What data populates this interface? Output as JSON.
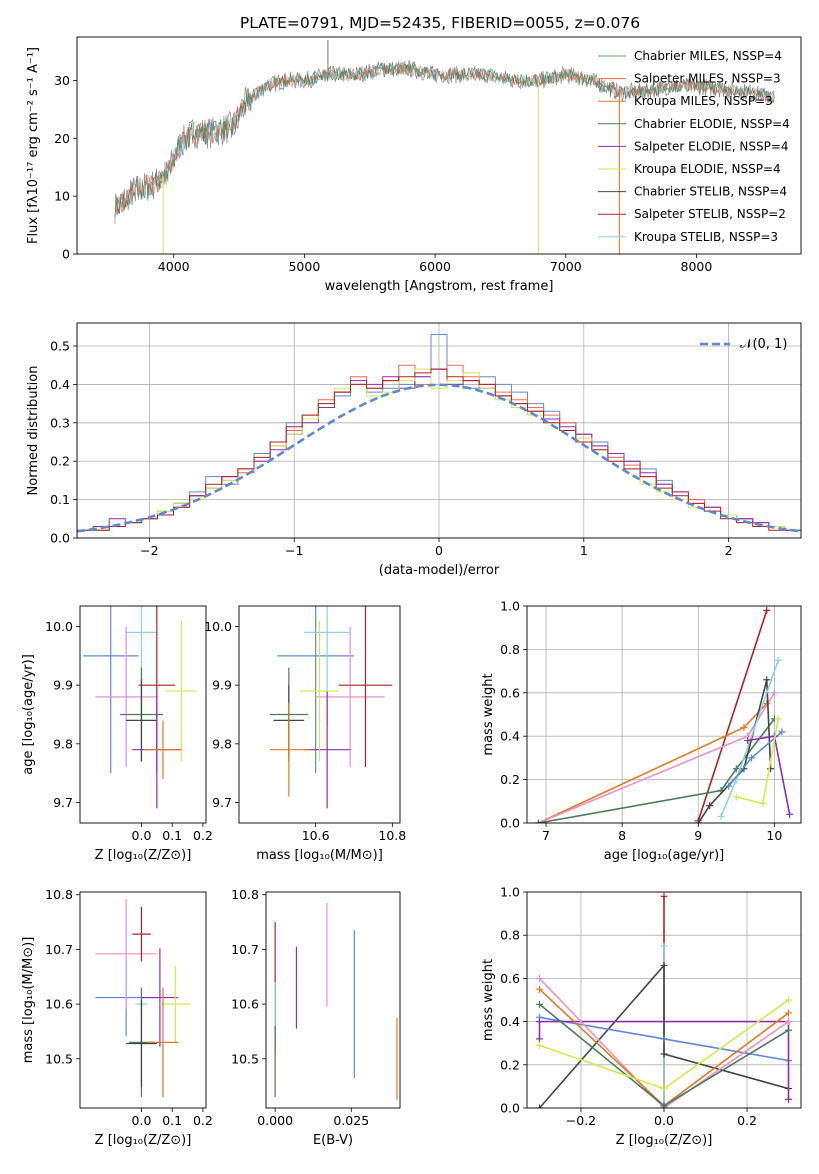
{
  "figure": {
    "title": "PLATE=0791, MJD=52435, FIBERID=0055, z=0.076"
  },
  "chart_data": [
    {
      "type": "line",
      "title": "PLATE=0791, MJD=52435, FIBERID=0055, z=0.076",
      "xlabel": "wavelength [Angstrom, rest frame]",
      "ylabel": "Flux [fλ10⁻¹⁷ erg cm⁻² s⁻¹ A⁻¹]",
      "xlim": [
        3260,
        8800
      ],
      "ylim": [
        0,
        37.5
      ],
      "xticks": [
        "4000",
        "5000",
        "6000",
        "7000",
        "8000"
      ],
      "yticks": [
        "0",
        "10",
        "20",
        "30"
      ],
      "legend_position": "top-right",
      "series": [
        {
          "name": "Chabrier MILES, N_SSP=4",
          "color": "#5f9e6e"
        },
        {
          "name": "Salpeter MILES, N_SSP=3",
          "color": "#ee6a50"
        },
        {
          "name": "Kroupa MILES, N_SSP=3",
          "color": "#e07a1f"
        },
        {
          "name": "Chabrier ELODIE, N_SSP=4",
          "color": "#4a7c59"
        },
        {
          "name": "Salpeter ELODIE, N_SSP=4",
          "color": "#8e2fb0"
        },
        {
          "name": "Kroupa ELODIE, N_SSP=4",
          "color": "#d4e84a"
        },
        {
          "name": "Chabrier STELIB, N_SSP=4",
          "color": "#444444"
        },
        {
          "name": "Salpeter STELIB, N_SSP=2",
          "color": "#b22222"
        },
        {
          "name": "Kroupa STELIB, N_SSP=3",
          "color": "#87d4e0"
        }
      ],
      "continuum": [
        [
          3550,
          8
        ],
        [
          3700,
          11
        ],
        [
          3850,
          12
        ],
        [
          3950,
          14
        ],
        [
          4050,
          19
        ],
        [
          4150,
          21
        ],
        [
          4300,
          21
        ],
        [
          4450,
          22
        ],
        [
          4550,
          26
        ],
        [
          4700,
          29
        ],
        [
          4850,
          30
        ],
        [
          5000,
          30
        ],
        [
          5200,
          31
        ],
        [
          5400,
          31
        ],
        [
          5600,
          32
        ],
        [
          5800,
          32
        ],
        [
          6000,
          31
        ],
        [
          6200,
          31
        ],
        [
          6400,
          31
        ],
        [
          6600,
          30
        ],
        [
          6800,
          30
        ],
        [
          7000,
          31
        ],
        [
          7200,
          30
        ],
        [
          7400,
          28
        ],
        [
          7600,
          28
        ],
        [
          7800,
          29
        ],
        [
          8000,
          29
        ],
        [
          8200,
          28.5
        ],
        [
          8400,
          28
        ],
        [
          8600,
          27
        ]
      ],
      "spikes": [
        {
          "x": 5180,
          "y": 37
        },
        {
          "x": 6790,
          "y": 0
        },
        {
          "x": 7410,
          "y": 0
        },
        {
          "x": 3920,
          "y": 0
        }
      ]
    },
    {
      "type": "line",
      "xlabel": "(data-model)/error",
      "ylabel": "Normed distribution",
      "xlim": [
        -2.5,
        2.5
      ],
      "ylim": [
        0,
        0.56
      ],
      "xticks": [
        "−2",
        "−1",
        "0",
        "1",
        "2"
      ],
      "yticks": [
        "0.0",
        "0.1",
        "0.2",
        "0.3",
        "0.4",
        "0.5"
      ],
      "grid": true,
      "legend_position": "top-right",
      "reference_curve": {
        "name": "𝒩(0, 1)",
        "color": "#5b8bd6"
      },
      "histograms": [
        {
          "color": "#5b8bd6",
          "values": [
            0.02,
            0.02,
            0.03,
            0.04,
            0.05,
            0.07,
            0.09,
            0.12,
            0.16,
            0.14,
            0.18,
            0.22,
            0.25,
            0.3,
            0.31,
            0.34,
            0.37,
            0.4,
            0.38,
            0.39,
            0.4,
            0.42,
            0.53,
            0.4,
            0.39,
            0.42,
            0.4,
            0.38,
            0.35,
            0.33,
            0.3,
            0.27,
            0.25,
            0.22,
            0.2,
            0.18,
            0.15,
            0.12,
            0.1,
            0.08,
            0.06,
            0.05,
            0.04,
            0.03,
            0.02
          ]
        },
        {
          "color": "#ee6a50",
          "values": [
            0.02,
            0.02,
            0.03,
            0.04,
            0.05,
            0.06,
            0.08,
            0.11,
            0.13,
            0.15,
            0.17,
            0.2,
            0.24,
            0.28,
            0.32,
            0.36,
            0.38,
            0.42,
            0.39,
            0.41,
            0.45,
            0.4,
            0.44,
            0.45,
            0.42,
            0.4,
            0.38,
            0.36,
            0.34,
            0.32,
            0.3,
            0.27,
            0.24,
            0.21,
            0.19,
            0.16,
            0.14,
            0.12,
            0.1,
            0.08,
            0.06,
            0.05,
            0.04,
            0.03,
            0.02
          ]
        },
        {
          "color": "#8e2fb0",
          "values": [
            0.02,
            0.03,
            0.05,
            0.04,
            0.05,
            0.06,
            0.09,
            0.11,
            0.13,
            0.16,
            0.18,
            0.2,
            0.23,
            0.27,
            0.3,
            0.34,
            0.38,
            0.41,
            0.4,
            0.42,
            0.39,
            0.42,
            0.44,
            0.4,
            0.41,
            0.39,
            0.37,
            0.35,
            0.33,
            0.31,
            0.29,
            0.27,
            0.24,
            0.22,
            0.2,
            0.17,
            0.14,
            0.12,
            0.09,
            0.08,
            0.06,
            0.05,
            0.04,
            0.03,
            0.02
          ]
        },
        {
          "color": "#d4e84a",
          "values": [
            0.02,
            0.02,
            0.03,
            0.04,
            0.05,
            0.07,
            0.09,
            0.1,
            0.13,
            0.15,
            0.18,
            0.21,
            0.24,
            0.27,
            0.31,
            0.35,
            0.39,
            0.4,
            0.37,
            0.38,
            0.41,
            0.44,
            0.39,
            0.41,
            0.43,
            0.39,
            0.36,
            0.34,
            0.32,
            0.3,
            0.28,
            0.26,
            0.23,
            0.2,
            0.18,
            0.14,
            0.12,
            0.1,
            0.08,
            0.07,
            0.06,
            0.04,
            0.03,
            0.03,
            0.02
          ]
        },
        {
          "color": "#b22222",
          "values": [
            0.02,
            0.02,
            0.03,
            0.04,
            0.05,
            0.06,
            0.08,
            0.11,
            0.14,
            0.16,
            0.18,
            0.21,
            0.25,
            0.29,
            0.32,
            0.35,
            0.38,
            0.4,
            0.39,
            0.41,
            0.42,
            0.43,
            0.44,
            0.42,
            0.41,
            0.4,
            0.37,
            0.35,
            0.33,
            0.3,
            0.28,
            0.25,
            0.23,
            0.2,
            0.18,
            0.16,
            0.13,
            0.11,
            0.09,
            0.07,
            0.05,
            0.04,
            0.03,
            0.02,
            0.02
          ]
        }
      ]
    },
    {
      "type": "scatter",
      "xlabel": "Z [log₁₀(Z/Z⊙)]",
      "ylabel": "age  [log₁₀(age/yr)]",
      "xlim": [
        -0.2,
        0.21
      ],
      "ylim": [
        9.665,
        10.035
      ],
      "xticks": [
        "0.0",
        "0.1",
        "0.2"
      ],
      "yticks": [
        "9.7",
        "9.8",
        "9.9",
        "10.0"
      ],
      "points": [
        {
          "x": -0.1,
          "y": 9.95,
          "xerr": 0.09,
          "yerr": 0.2,
          "color": "#5b8bd6"
        },
        {
          "x": 0.0,
          "y": 9.99,
          "xerr": 0.05,
          "yerr": 0.16,
          "color": "#87d4e0"
        },
        {
          "x": -0.05,
          "y": 9.88,
          "xerr": 0.1,
          "yerr": 0.12,
          "color": "#ee8fc9"
        },
        {
          "x": 0.05,
          "y": 9.9,
          "xerr": 0.06,
          "yerr": 0.15,
          "color": "#b22222"
        },
        {
          "x": 0.0,
          "y": 9.85,
          "xerr": 0.07,
          "yerr": 0.08,
          "color": "#4a7c59"
        },
        {
          "x": 0.0,
          "y": 9.84,
          "xerr": 0.05,
          "yerr": 0.07,
          "color": "#444444"
        },
        {
          "x": 0.05,
          "y": 9.79,
          "xerr": 0.08,
          "yerr": 0.1,
          "color": "#8e2fb0"
        },
        {
          "x": 0.13,
          "y": 9.89,
          "xerr": 0.05,
          "yerr": 0.12,
          "color": "#d4e84a"
        },
        {
          "x": 0.07,
          "y": 9.79,
          "xerr": 0.06,
          "yerr": 0.05,
          "color": "#e07a1f"
        }
      ]
    },
    {
      "type": "scatter",
      "xlabel": "mass [log₁₀(M/M⊙)]",
      "xlim": [
        10.4,
        10.82
      ],
      "ylim": [
        9.665,
        10.035
      ],
      "xticks": [
        "10.6",
        "10.8"
      ],
      "yticks": [
        "9.7",
        "9.8",
        "9.9",
        "10.0"
      ],
      "points": [
        {
          "x": 10.6,
          "y": 9.95,
          "xerr": 0.1,
          "yerr": 0.2,
          "color": "#5b8bd6"
        },
        {
          "x": 10.63,
          "y": 9.99,
          "xerr": 0.06,
          "yerr": 0.16,
          "color": "#87d4e0"
        },
        {
          "x": 10.69,
          "y": 9.88,
          "xerr": 0.09,
          "yerr": 0.12,
          "color": "#ee8fc9"
        },
        {
          "x": 10.73,
          "y": 9.9,
          "xerr": 0.07,
          "yerr": 0.14,
          "color": "#b22222"
        },
        {
          "x": 10.53,
          "y": 9.85,
          "xerr": 0.05,
          "yerr": 0.08,
          "color": "#4a7c59"
        },
        {
          "x": 10.53,
          "y": 9.84,
          "xerr": 0.04,
          "yerr": 0.06,
          "color": "#444444"
        },
        {
          "x": 10.63,
          "y": 9.79,
          "xerr": 0.06,
          "yerr": 0.1,
          "color": "#8e2fb0"
        },
        {
          "x": 10.61,
          "y": 9.89,
          "xerr": 0.05,
          "yerr": 0.12,
          "color": "#d4e84a"
        },
        {
          "x": 10.53,
          "y": 9.79,
          "xerr": 0.05,
          "yerr": 0.08,
          "color": "#e07a1f"
        }
      ]
    },
    {
      "type": "line",
      "xlabel": "age  [log₁₀(age/yr)]",
      "ylabel": "mass weight",
      "xlim": [
        6.75,
        10.35
      ],
      "ylim": [
        0,
        1.0
      ],
      "xticks": [
        "7",
        "8",
        "9",
        "10"
      ],
      "yticks": [
        "0.0",
        "0.2",
        "0.4",
        "0.6",
        "0.8",
        "1.0"
      ],
      "grid": true,
      "series": [
        {
          "color": "#b22222",
          "x": [
            9.0,
            9.9
          ],
          "y": [
            0.01,
            0.98
          ]
        },
        {
          "color": "#e07a1f",
          "x": [
            6.9,
            9.6,
            9.9
          ],
          "y": [
            0.0,
            0.44,
            0.55
          ]
        },
        {
          "color": "#ee8fc9",
          "x": [
            6.9,
            9.65,
            10.0
          ],
          "y": [
            0.0,
            0.4,
            0.6
          ]
        },
        {
          "color": "#4a7c59",
          "x": [
            6.9,
            9.3,
            9.5,
            10.0
          ],
          "y": [
            0.0,
            0.15,
            0.25,
            0.48
          ]
        },
        {
          "color": "#444444",
          "x": [
            9.0,
            9.15,
            9.6,
            9.9,
            9.95
          ],
          "y": [
            0.0,
            0.08,
            0.25,
            0.66,
            0.25
          ]
        },
        {
          "color": "#87d4e0",
          "x": [
            9.3,
            9.5,
            10.05
          ],
          "y": [
            0.03,
            0.2,
            0.75
          ]
        },
        {
          "color": "#5b8bd6",
          "x": [
            9.4,
            9.7,
            10.1
          ],
          "y": [
            0.17,
            0.3,
            0.42
          ]
        },
        {
          "color": "#8e2fb0",
          "x": [
            9.65,
            10.0,
            10.2
          ],
          "y": [
            0.38,
            0.4,
            0.04
          ]
        },
        {
          "color": "#d4e84a",
          "x": [
            9.5,
            9.85,
            10.05
          ],
          "y": [
            0.12,
            0.09,
            0.48
          ]
        }
      ]
    },
    {
      "type": "scatter",
      "xlabel": "Z [log₁₀(Z/Z⊙)]",
      "ylabel": "mass [log₁₀(M/M⊙)]",
      "xlim": [
        -0.2,
        0.21
      ],
      "ylim": [
        10.41,
        10.805
      ],
      "xticks": [
        "0.0",
        "0.1",
        "0.2"
      ],
      "yticks": [
        "10.5",
        "10.6",
        "10.7",
        "10.8"
      ],
      "points": [
        {
          "x": -0.05,
          "y": 10.612,
          "xerr": 0.1,
          "yerr": 0.07,
          "color": "#5b8bd6"
        },
        {
          "x": 0.0,
          "y": 10.6,
          "xerr": 0.02,
          "yerr": 0.03,
          "color": "#87d4e0"
        },
        {
          "x": -0.05,
          "y": 10.692,
          "xerr": 0.1,
          "yerr": 0.1,
          "color": "#ee8fc9"
        },
        {
          "x": 0.0,
          "y": 10.728,
          "xerr": 0.03,
          "yerr": 0.05,
          "color": "#b22222"
        },
        {
          "x": 0.0,
          "y": 10.53,
          "xerr": 0.04,
          "yerr": 0.1,
          "color": "#4a7c59"
        },
        {
          "x": 0.0,
          "y": 10.528,
          "xerr": 0.05,
          "yerr": 0.08,
          "color": "#444444"
        },
        {
          "x": 0.06,
          "y": 10.612,
          "xerr": 0.06,
          "yerr": 0.09,
          "color": "#8e2fb0"
        },
        {
          "x": 0.11,
          "y": 10.6,
          "xerr": 0.05,
          "yerr": 0.07,
          "color": "#d4e84a"
        },
        {
          "x": 0.07,
          "y": 10.53,
          "xerr": 0.05,
          "yerr": 0.1,
          "color": "#e07a1f"
        }
      ]
    },
    {
      "type": "scatter",
      "xlabel": "E(B-V)",
      "xlim": [
        -0.003,
        0.041
      ],
      "ylim": [
        10.41,
        10.805
      ],
      "xticks": [
        "0.000",
        "0.025"
      ],
      "yticks": [
        "10.5",
        "10.6",
        "10.7",
        "10.8"
      ],
      "points": [
        {
          "x": 0.0,
          "y": 10.63,
          "yerr": 0.12,
          "color": "#b22222"
        },
        {
          "x": 0.0,
          "y": 10.53,
          "yerr": 0.1,
          "color": "#4a7c59"
        },
        {
          "x": 0.0,
          "y": 10.6,
          "yerr": 0.04,
          "color": "#87d4e0"
        },
        {
          "x": 0.007,
          "y": 10.63,
          "yerr": 0.075,
          "color": "#8e2fb0"
        },
        {
          "x": 0.017,
          "y": 10.69,
          "yerr": 0.095,
          "color": "#ee8fc9"
        },
        {
          "x": 0.026,
          "y": 10.6,
          "yerr": 0.135,
          "color": "#5b8bd6"
        },
        {
          "x": 0.04,
          "y": 10.5,
          "yerr": 0.075,
          "color": "#e07a1f"
        }
      ]
    },
    {
      "type": "line",
      "xlabel": "Z [log₁₀(Z/Z⊙)]",
      "ylabel": "mass weight",
      "xlim": [
        -0.33,
        0.33
      ],
      "ylim": [
        0,
        1.0
      ],
      "xticks": [
        "−0.2",
        "0.0",
        "0.2"
      ],
      "yticks": [
        "0.0",
        "0.2",
        "0.4",
        "0.6",
        "0.8",
        "1.0"
      ],
      "grid": true,
      "series": [
        {
          "color": "#b22222",
          "x": [
            0.0,
            0.0
          ],
          "y": [
            0.0,
            0.98
          ]
        },
        {
          "color": "#87d4e0",
          "x": [
            0.0,
            0.0
          ],
          "y": [
            0.0,
            0.75
          ]
        },
        {
          "color": "#444444",
          "x": [
            -0.3,
            0.0,
            0.0,
            0.3
          ],
          "y": [
            0.0,
            0.66,
            0.25,
            0.09
          ]
        },
        {
          "color": "#5b8bd6",
          "x": [
            -0.3,
            0.0,
            0.3
          ],
          "y": [
            0.42,
            0.32,
            0.22
          ]
        },
        {
          "color": "#8e2fb0",
          "x": [
            -0.3,
            -0.3,
            0.3,
            0.3
          ],
          "y": [
            0.32,
            0.4,
            0.4,
            0.04
          ]
        },
        {
          "color": "#ee8fc9",
          "x": [
            -0.3,
            0.0,
            0.3
          ],
          "y": [
            0.6,
            0.0,
            0.4
          ]
        },
        {
          "color": "#e07a1f",
          "x": [
            -0.3,
            0.0,
            0.3
          ],
          "y": [
            0.55,
            0.01,
            0.44
          ]
        },
        {
          "color": "#4a7c59",
          "x": [
            -0.3,
            0.0,
            0.3
          ],
          "y": [
            0.48,
            0.01,
            0.36
          ]
        },
        {
          "color": "#d4e84a",
          "x": [
            -0.3,
            0.0,
            0.3
          ],
          "y": [
            0.29,
            0.09,
            0.5
          ]
        }
      ]
    }
  ]
}
